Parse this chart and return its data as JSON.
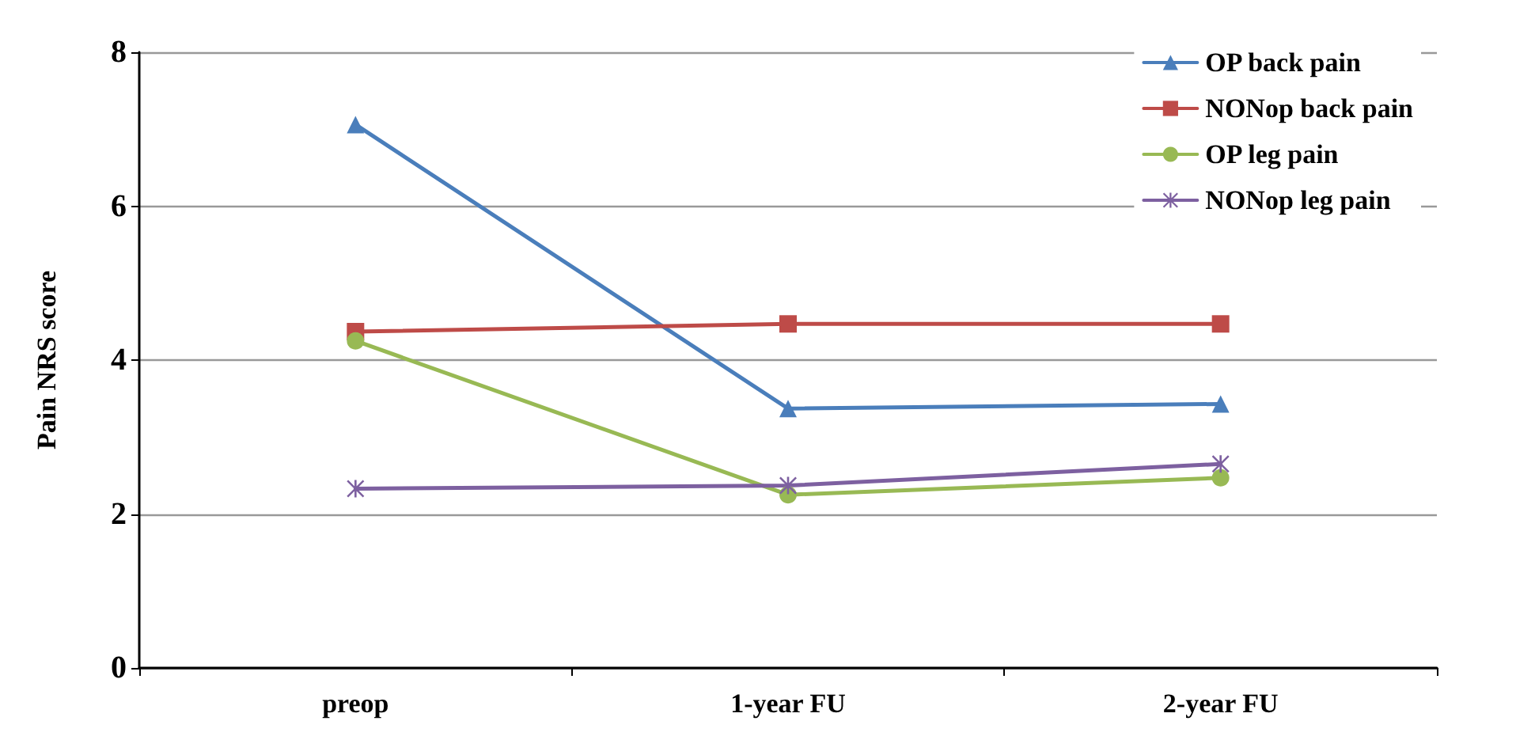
{
  "chart_data": {
    "type": "line",
    "ylabel": "Pain NRS score",
    "categories": [
      "preop",
      "1-year FU",
      "2-year FU"
    ],
    "series": [
      {
        "name": "OP back pain",
        "color": "#4a7ebb",
        "marker": "triangle",
        "values": [
          7.06,
          3.37,
          3.43
        ]
      },
      {
        "name": "NONop back pain",
        "color": "#be4b48",
        "marker": "square",
        "values": [
          4.37,
          4.47,
          4.47
        ]
      },
      {
        "name": "OP leg pain",
        "color": "#98b954",
        "marker": "circle",
        "values": [
          4.25,
          2.25,
          2.47
        ]
      },
      {
        "name": "NONop leg pain",
        "color": "#7d60a0",
        "marker": "cross",
        "values": [
          2.33,
          2.37,
          2.65
        ]
      }
    ],
    "ylim": [
      0,
      8
    ],
    "yticks": [
      0,
      2,
      4,
      6,
      8
    ],
    "grid": "y",
    "legend": "top right",
    "line_style": "solid"
  }
}
